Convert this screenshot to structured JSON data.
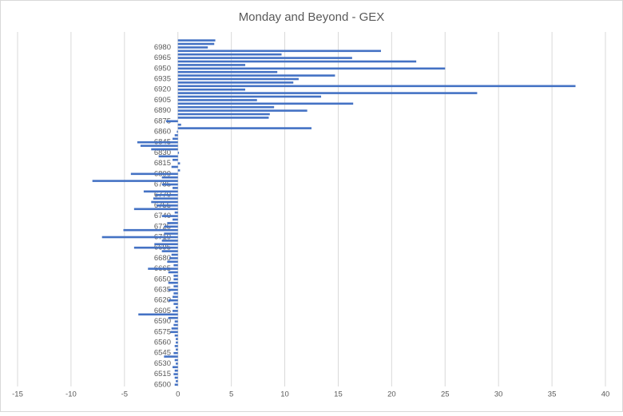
{
  "chart_data": {
    "type": "hbar",
    "title": "Monday and Beyond - GEX",
    "categories": [
      "6500",
      null,
      null,
      "6515",
      null,
      null,
      "6530",
      null,
      null,
      "6545",
      null,
      null,
      "6560",
      null,
      null,
      "6575",
      null,
      null,
      "6590",
      null,
      null,
      "6605",
      null,
      null,
      "6620",
      null,
      null,
      "6635",
      null,
      null,
      "6650",
      null,
      null,
      "6665",
      null,
      null,
      "6680",
      null,
      null,
      "6695",
      null,
      null,
      "6710",
      null,
      null,
      "6725",
      null,
      null,
      "6740",
      null,
      null,
      "6755",
      null,
      null,
      "6770",
      null,
      null,
      "6785",
      null,
      null,
      "6800",
      null,
      null,
      "6815",
      null,
      null,
      "6830",
      null,
      null,
      "6845",
      null,
      null,
      "6860",
      null,
      null,
      "6875",
      null,
      null,
      "6890",
      null,
      null,
      "6905",
      null,
      null,
      "6920",
      null,
      null,
      "6935",
      null,
      null,
      "6950",
      null,
      null,
      "6965",
      null,
      null,
      "6980",
      null,
      null
    ],
    "values": [
      -0.3,
      -0.2,
      -0.3,
      -0.4,
      -0.3,
      -0.5,
      -0.2,
      -0.3,
      -1.3,
      -0.4,
      -0.2,
      -0.3,
      -0.2,
      -0.2,
      -0.3,
      -0.7,
      -0.6,
      -0.4,
      -0.3,
      -0.9,
      -3.7,
      -0.5,
      -0.2,
      -0.4,
      -0.9,
      -0.5,
      -0.4,
      -0.9,
      -0.4,
      -0.9,
      -0.4,
      -0.4,
      -0.9,
      -2.8,
      -0.4,
      -1.0,
      -0.8,
      -0.6,
      -1.5,
      -4.1,
      -2.2,
      -1.5,
      -7.1,
      -1.3,
      -5.1,
      -1.3,
      -1.0,
      -0.5,
      -1.5,
      -0.3,
      -4.1,
      -2.0,
      -2.5,
      -2.3,
      -2.1,
      -3.2,
      -0.5,
      -1.5,
      -8.0,
      -1.5,
      -4.4,
      0.2,
      -0.6,
      0.2,
      -0.5,
      -1.8,
      0.1,
      -2.5,
      -3.5,
      -3.8,
      -0.5,
      -0.3,
      -0.1,
      12.5,
      0.3,
      -1.1,
      8.5,
      8.6,
      12.1,
      9.0,
      16.4,
      7.4,
      13.4,
      28.0,
      6.3,
      37.2,
      10.8,
      11.3,
      14.7,
      9.3,
      25.0,
      6.3,
      22.3,
      16.3,
      9.7,
      19.0,
      2.8,
      3.4,
      3.5
    ],
    "color": "#4472c4",
    "xlim": [
      -15,
      40
    ],
    "xticks": [
      -15,
      -10,
      -5,
      0,
      5,
      10,
      15,
      20,
      25,
      30,
      35,
      40
    ],
    "grid": true
  }
}
